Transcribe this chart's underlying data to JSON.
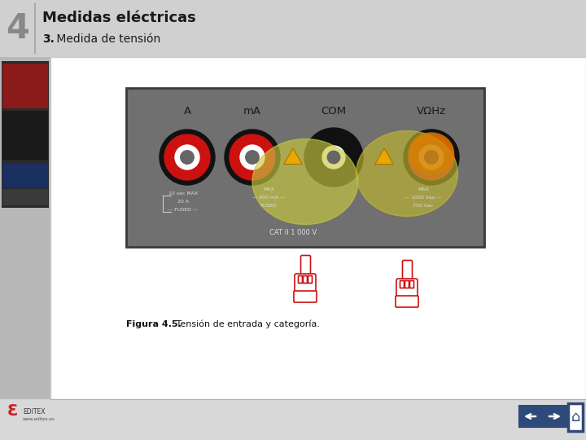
{
  "title": "Medidas eléctricas",
  "subtitle_bold": "3.",
  "subtitle_rest": " Medida de tensión",
  "number": "4",
  "caption_bold": "Figura 4.5.",
  "caption_text": " Tensión de entrada y categoría.",
  "bg_color": "#d8d8d8",
  "header_bg": "#d0d0d0",
  "content_bg": "#ffffff",
  "meter_bg": "#707070",
  "port_labels": [
    "A",
    "mA",
    "COM",
    "VΩHz"
  ],
  "highlight_color1": "#c8c830",
  "nav_color": "#2e4a7a",
  "left_bar_color": "#c0c0c0"
}
